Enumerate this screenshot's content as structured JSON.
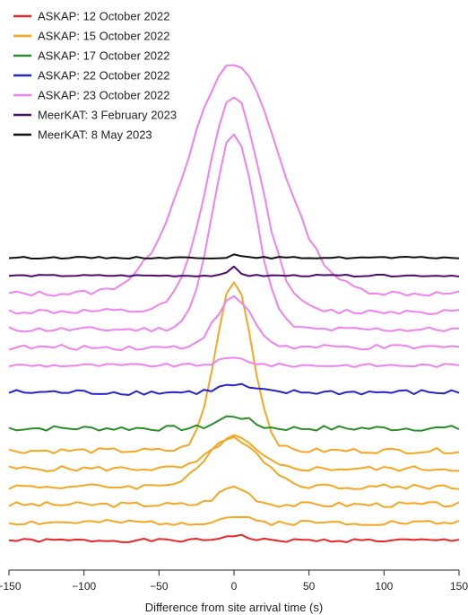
{
  "chart_data": {
    "type": "line",
    "title": "",
    "xlabel": "Difference from site arrival time (s)",
    "ylabel": "",
    "xlim": [
      -150,
      150
    ],
    "x_ticks": [
      -150,
      -100,
      -50,
      0,
      50,
      100,
      150
    ],
    "x_tick_labels": [
      "−150",
      "−100",
      "−50",
      "0",
      "50",
      "100",
      "150"
    ],
    "grid": false,
    "legend_position": "top-left",
    "legend": [
      {
        "name": "ASKAP: 12 October 2022",
        "color": "#e8262a"
      },
      {
        "name": "ASKAP: 15 October 2022",
        "color": "#f5a623"
      },
      {
        "name": "ASKAP: 17 October 2022",
        "color": "#2a8f2a"
      },
      {
        "name": "ASKAP: 22 October 2022",
        "color": "#2525c9"
      },
      {
        "name": "ASKAP: 23 October 2022",
        "color": "#ee82ee"
      },
      {
        "name": "MeerKAT: 3 February 2023",
        "color": "#4b0f6b"
      },
      {
        "name": "MeerKAT: 8 May 2023",
        "color": "#111111"
      }
    ],
    "series": [
      {
        "color": "#e8262a",
        "baseline": 0,
        "peak": 6,
        "width": 8,
        "noise": 2,
        "seed": 1
      },
      {
        "color": "#f5a623",
        "baseline": 20,
        "peak": 7,
        "width": 8,
        "noise": 3,
        "seed": 2
      },
      {
        "color": "#f5a623",
        "baseline": 40,
        "peak": 20,
        "width": 10,
        "noise": 3,
        "seed": 3
      },
      {
        "color": "#f5a623",
        "baseline": 60,
        "peak": 54,
        "width": 18,
        "noise": 3,
        "seed": 4
      },
      {
        "color": "#f5a623",
        "baseline": 80,
        "peak": 35,
        "width": 14,
        "noise": 3,
        "seed": 5
      },
      {
        "color": "#f5a623",
        "baseline": 100,
        "peak": 190,
        "width": 12,
        "noise": 3,
        "seed": 6
      },
      {
        "color": "#2a8f2a",
        "baseline": 125,
        "peak": 14,
        "width": 10,
        "noise": 3,
        "seed": 7
      },
      {
        "color": "#2525c9",
        "baseline": 165,
        "peak": 8,
        "width": 10,
        "noise": 3,
        "seed": 8
      },
      {
        "color": "#ee82ee",
        "baseline": 195,
        "peak": 8,
        "width": 10,
        "noise": 2,
        "seed": 9
      },
      {
        "color": "#ee82ee",
        "baseline": 215,
        "peak": 55,
        "width": 12,
        "noise": 3,
        "seed": 10
      },
      {
        "color": "#ee82ee",
        "baseline": 235,
        "peak": 220,
        "width": 14,
        "noise": 3,
        "seed": 11
      },
      {
        "color": "#ee82ee",
        "baseline": 255,
        "peak": 240,
        "width": 18,
        "noise": 3,
        "seed": 12
      },
      {
        "color": "#ee82ee",
        "baseline": 275,
        "peak": 255,
        "width": 30,
        "noise": 3,
        "seed": 13
      },
      {
        "color": "#4b0f6b",
        "baseline": 295,
        "peak": 10,
        "width": 3,
        "noise": 1,
        "seed": 14
      },
      {
        "color": "#111111",
        "baseline": 315,
        "peak": 3,
        "width": 3,
        "noise": 1,
        "seed": 15
      }
    ]
  }
}
